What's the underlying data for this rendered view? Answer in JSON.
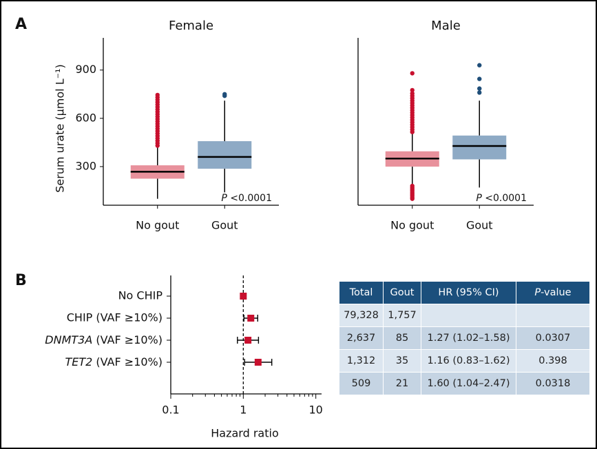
{
  "panel_labels": [
    "A",
    "B"
  ],
  "chart_data": [
    {
      "type": "box",
      "title": "Female",
      "categories": [
        "No gout",
        "Gout"
      ],
      "ylabel": "Serum urate (μmol L⁻¹)",
      "annotation": "P <0.0001",
      "ylim": [
        60,
        1100
      ],
      "yticks": [
        300,
        600,
        900
      ],
      "box_colors": [
        "#e8919c",
        "#8eaac5"
      ],
      "point_colors": [
        "#c8102e",
        "#1f4e79"
      ],
      "boxes": [
        {
          "whislo": 100,
          "q1": 225,
          "med": 268,
          "q3": 308,
          "whishi": 425,
          "outliers": [
            430,
            445,
            460,
            475,
            490,
            505,
            520,
            535,
            550,
            565,
            580,
            595,
            610,
            625,
            640,
            655,
            670,
            685,
            700,
            715,
            730,
            745
          ]
        },
        {
          "whislo": 140,
          "q1": 287,
          "med": 360,
          "q3": 458,
          "whishi": 710,
          "outliers": [
            740,
            750
          ]
        }
      ]
    },
    {
      "type": "box",
      "title": "Male",
      "categories": [
        "No gout",
        "Gout"
      ],
      "annotation": "P <0.0001",
      "ylim": [
        60,
        1100
      ],
      "box_colors": [
        "#e8919c",
        "#8eaac5"
      ],
      "point_colors": [
        "#c8102e",
        "#1f4e79"
      ],
      "boxes": [
        {
          "whislo": 190,
          "q1": 300,
          "med": 350,
          "q3": 395,
          "whishi": 505,
          "outliers": [
            100,
            110,
            120,
            130,
            140,
            150,
            160,
            170,
            180,
            515,
            530,
            545,
            560,
            575,
            590,
            605,
            620,
            635,
            650,
            665,
            680,
            695,
            710,
            725,
            740,
            755,
            775,
            880
          ]
        },
        {
          "whislo": 170,
          "q1": 345,
          "med": 428,
          "q3": 493,
          "whishi": 710,
          "outliers": [
            760,
            785,
            845,
            930
          ]
        }
      ]
    },
    {
      "type": "forest",
      "categories": [
        "No CHIP",
        "CHIP (VAF ≥10%)",
        "DNMT3A (VAF ≥10%)",
        "TET2 (VAF ≥10%)"
      ],
      "values": [
        1,
        1.27,
        1.16,
        1.6
      ],
      "ci_low": [
        null,
        1.02,
        0.83,
        1.04
      ],
      "ci_high": [
        null,
        1.58,
        1.62,
        2.47
      ],
      "color": "#c8102e",
      "log": true,
      "reference": 1,
      "xlim": [
        0.1,
        12
      ],
      "xticks": [
        0.1,
        1,
        10
      ],
      "minor_xticks": [
        0.2,
        0.3,
        0.4,
        0.5,
        0.6,
        0.7,
        0.8,
        0.9,
        2,
        3,
        4,
        5,
        6,
        7,
        8,
        9
      ],
      "xlabel": "Hazard ratio"
    }
  ],
  "table": {
    "header": [
      "Total",
      "Gout",
      "HR (95% CI)",
      "P-value"
    ],
    "rows": [
      [
        "79,328",
        "1,757",
        null,
        null
      ],
      [
        "2,637",
        "85",
        "1.27 (1.02–1.58)",
        "0.0307"
      ],
      [
        "1,312",
        "35",
        "1.16 (0.83–1.62)",
        "0.398"
      ],
      [
        "509",
        "21",
        "1.60 (1.04–2.47)",
        "0.0318"
      ]
    ]
  }
}
